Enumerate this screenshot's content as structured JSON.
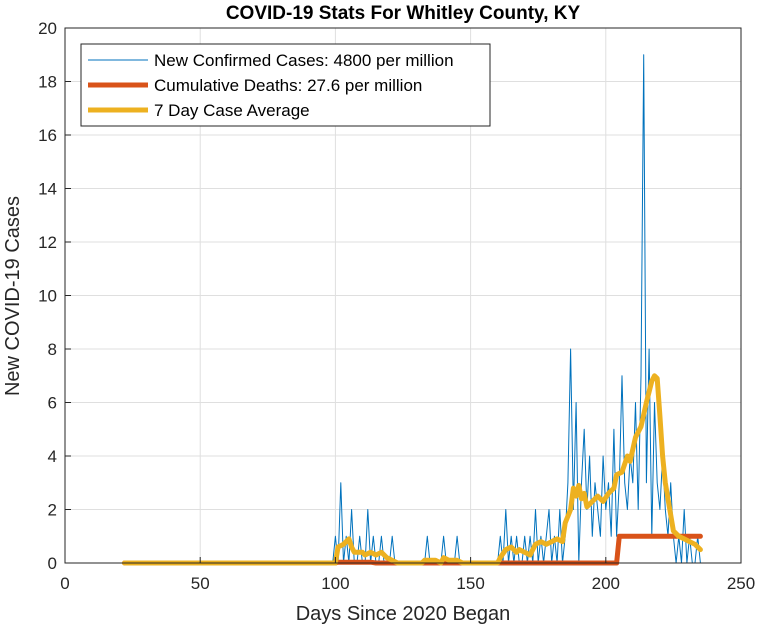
{
  "chart_data": {
    "type": "line",
    "title": "COVID-19 Stats For Whitley County, KY",
    "xlabel": "Days Since 2020 Began",
    "ylabel": "New COVID-19 Cases",
    "xlim": [
      0,
      250
    ],
    "ylim": [
      0,
      20
    ],
    "xticks": [
      0,
      50,
      100,
      150,
      200,
      250
    ],
    "yticks": [
      0,
      2,
      4,
      6,
      8,
      10,
      12,
      14,
      16,
      18,
      20
    ],
    "grid": true,
    "legend_position": "top-left",
    "series": [
      {
        "name": "New Confirmed Cases: 4800 per million",
        "color": "#0072BD",
        "points": [
          [
            22,
            0
          ],
          [
            99,
            0
          ],
          [
            100,
            1
          ],
          [
            101,
            0
          ],
          [
            102,
            3
          ],
          [
            103,
            0
          ],
          [
            104,
            1
          ],
          [
            105,
            0
          ],
          [
            106,
            2
          ],
          [
            107,
            0
          ],
          [
            108,
            0
          ],
          [
            109,
            1
          ],
          [
            110,
            0
          ],
          [
            111,
            0
          ],
          [
            112,
            2
          ],
          [
            113,
            0
          ],
          [
            114,
            1
          ],
          [
            115,
            0
          ],
          [
            116,
            0
          ],
          [
            117,
            1
          ],
          [
            118,
            0
          ],
          [
            119,
            0
          ],
          [
            120,
            0
          ],
          [
            121,
            1
          ],
          [
            122,
            0
          ],
          [
            123,
            0
          ],
          [
            124,
            0
          ],
          [
            125,
            0
          ],
          [
            126,
            0
          ],
          [
            127,
            0
          ],
          [
            128,
            0
          ],
          [
            129,
            0
          ],
          [
            130,
            0
          ],
          [
            131,
            0
          ],
          [
            132,
            0
          ],
          [
            133,
            0
          ],
          [
            134,
            1
          ],
          [
            135,
            0
          ],
          [
            136,
            0
          ],
          [
            137,
            0
          ],
          [
            138,
            0
          ],
          [
            139,
            0
          ],
          [
            140,
            1
          ],
          [
            141,
            0
          ],
          [
            142,
            0
          ],
          [
            143,
            0
          ],
          [
            144,
            0
          ],
          [
            145,
            1
          ],
          [
            146,
            0
          ],
          [
            147,
            0
          ],
          [
            148,
            0
          ],
          [
            149,
            0
          ],
          [
            150,
            0
          ],
          [
            151,
            0
          ],
          [
            152,
            0
          ],
          [
            153,
            0
          ],
          [
            154,
            0
          ],
          [
            155,
            0
          ],
          [
            156,
            0
          ],
          [
            157,
            0
          ],
          [
            158,
            0
          ],
          [
            159,
            0
          ],
          [
            160,
            0
          ],
          [
            161,
            1
          ],
          [
            162,
            0
          ],
          [
            163,
            2
          ],
          [
            164,
            0
          ],
          [
            165,
            1
          ],
          [
            166,
            0
          ],
          [
            167,
            1
          ],
          [
            168,
            0
          ],
          [
            169,
            0
          ],
          [
            170,
            1
          ],
          [
            171,
            0
          ],
          [
            172,
            1
          ],
          [
            173,
            0
          ],
          [
            174,
            2
          ],
          [
            175,
            0
          ],
          [
            176,
            1
          ],
          [
            177,
            0
          ],
          [
            178,
            1
          ],
          [
            179,
            2
          ],
          [
            180,
            0
          ],
          [
            181,
            1
          ],
          [
            182,
            0
          ],
          [
            183,
            2
          ],
          [
            184,
            0
          ],
          [
            185,
            1
          ],
          [
            186,
            3
          ],
          [
            187,
            8
          ],
          [
            188,
            2
          ],
          [
            189,
            6
          ],
          [
            190,
            0
          ],
          [
            191,
            3
          ],
          [
            192,
            5
          ],
          [
            193,
            2
          ],
          [
            194,
            4
          ],
          [
            195,
            1
          ],
          [
            196,
            3
          ],
          [
            197,
            2
          ],
          [
            198,
            1
          ],
          [
            199,
            4
          ],
          [
            200,
            2
          ],
          [
            201,
            3
          ],
          [
            202,
            1
          ],
          [
            203,
            5
          ],
          [
            204,
            1
          ],
          [
            205,
            3
          ],
          [
            206,
            7
          ],
          [
            207,
            3
          ],
          [
            208,
            2
          ],
          [
            209,
            4
          ],
          [
            210,
            3
          ],
          [
            211,
            6
          ],
          [
            212,
            2
          ],
          [
            213,
            7
          ],
          [
            214,
            19
          ],
          [
            215,
            3
          ],
          [
            216,
            8
          ],
          [
            217,
            1
          ],
          [
            218,
            6
          ],
          [
            219,
            3
          ],
          [
            220,
            2
          ],
          [
            221,
            4
          ],
          [
            222,
            2
          ],
          [
            223,
            1
          ],
          [
            224,
            3
          ],
          [
            225,
            1
          ],
          [
            226,
            0
          ],
          [
            227,
            1
          ],
          [
            228,
            0
          ],
          [
            229,
            2
          ],
          [
            230,
            0
          ],
          [
            231,
            1
          ],
          [
            232,
            0
          ],
          [
            233,
            0
          ],
          [
            234,
            1
          ],
          [
            235,
            0
          ]
        ]
      },
      {
        "name": "Cumulative Deaths: 27.6 per million",
        "color": "#D95319",
        "points": [
          [
            22,
            0
          ],
          [
            100,
            0
          ],
          [
            101,
            0.03
          ],
          [
            113,
            0.03
          ],
          [
            115,
            0
          ],
          [
            204,
            0
          ],
          [
            205,
            1
          ],
          [
            235,
            1
          ]
        ]
      },
      {
        "name": "7 Day Case Average",
        "color": "#EDB120",
        "points": [
          [
            22,
            0
          ],
          [
            100,
            0
          ],
          [
            101,
            0.6
          ],
          [
            103,
            0.7
          ],
          [
            105,
            0.9
          ],
          [
            106,
            0.6
          ],
          [
            107,
            0.4
          ],
          [
            110,
            0.4
          ],
          [
            111,
            0.3
          ],
          [
            113,
            0.4
          ],
          [
            115,
            0.3
          ],
          [
            117,
            0.4
          ],
          [
            119,
            0.2
          ],
          [
            121,
            0.1
          ],
          [
            123,
            0
          ],
          [
            132,
            0
          ],
          [
            133,
            0.1
          ],
          [
            137,
            0.1
          ],
          [
            139,
            0
          ],
          [
            140,
            0.2
          ],
          [
            142,
            0.1
          ],
          [
            145,
            0.1
          ],
          [
            147,
            0
          ],
          [
            160,
            0
          ],
          [
            161,
            0.2
          ],
          [
            163,
            0.5
          ],
          [
            165,
            0.6
          ],
          [
            167,
            0.4
          ],
          [
            168,
            0.5
          ],
          [
            170,
            0.4
          ],
          [
            172,
            0.3
          ],
          [
            174,
            0.7
          ],
          [
            176,
            0.8
          ],
          [
            178,
            0.7
          ],
          [
            180,
            0.8
          ],
          [
            182,
            0.9
          ],
          [
            184,
            0.8
          ],
          [
            185,
            1.5
          ],
          [
            187,
            2.0
          ],
          [
            188,
            2.8
          ],
          [
            189,
            2.5
          ],
          [
            190,
            2.9
          ],
          [
            191,
            2.4
          ],
          [
            192,
            2.6
          ],
          [
            193,
            2.1
          ],
          [
            195,
            2.3
          ],
          [
            197,
            2.5
          ],
          [
            199,
            2.3
          ],
          [
            201,
            2.6
          ],
          [
            203,
            2.8
          ],
          [
            204,
            3.3
          ],
          [
            206,
            3.4
          ],
          [
            208,
            4.0
          ],
          [
            209,
            3.8
          ],
          [
            211,
            4.7
          ],
          [
            213,
            5.1
          ],
          [
            215,
            6.0
          ],
          [
            217,
            6.8
          ],
          [
            218,
            7.0
          ],
          [
            219,
            6.9
          ],
          [
            220,
            5.5
          ],
          [
            221,
            4.0
          ],
          [
            222,
            3.0
          ],
          [
            224,
            1.8
          ],
          [
            225,
            1.2
          ],
          [
            227,
            1.0
          ],
          [
            229,
            0.9
          ],
          [
            231,
            0.8
          ],
          [
            233,
            0.7
          ],
          [
            235,
            0.5
          ]
        ]
      }
    ]
  }
}
